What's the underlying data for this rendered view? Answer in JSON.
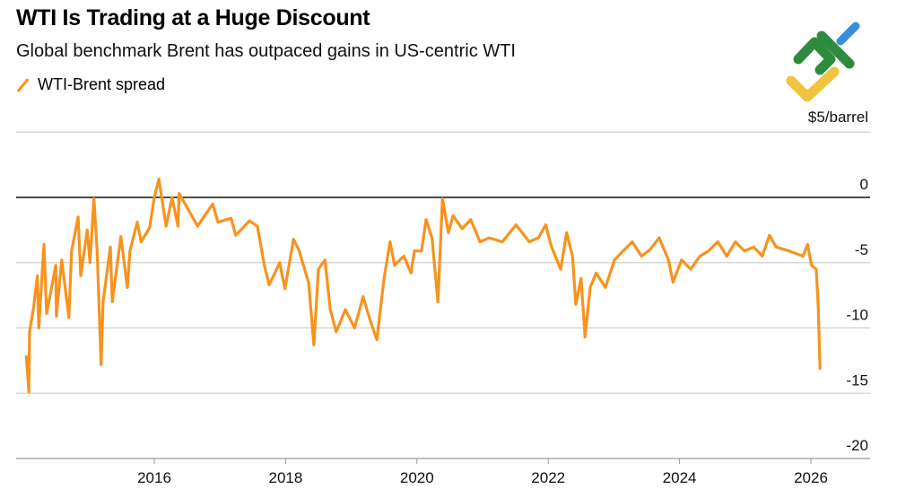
{
  "header": {
    "title": "WTI Is Trading at a Huge Discount",
    "subtitle": "Global benchmark Brent has outpaced gains in US-centric WTI"
  },
  "logo": {
    "name": "brand-logo",
    "colors": [
      "#2e8b3e",
      "#f0c43c",
      "#3a8fdc"
    ]
  },
  "chart_data": {
    "type": "line",
    "title": "WTI Is Trading at a Huge Discount",
    "subtitle": "Global benchmark Brent has outpaced gains in US-centric WTI",
    "unit_label": "$5/barrel",
    "legend_position": "top-left",
    "grid": true,
    "xlim": [
      2014.0,
      2026.9
    ],
    "ylim": [
      -20,
      5
    ],
    "x_ticks": [
      2016,
      2018,
      2020,
      2022,
      2024,
      2026
    ],
    "x_tick_labels": [
      "2016",
      "2018",
      "2020",
      "2022",
      "2024",
      "2026"
    ],
    "y_ticks": [
      0,
      -5,
      -10,
      -15,
      -20
    ],
    "y_tick_labels": [
      "0",
      "-5",
      "-10",
      "-15",
      "-20"
    ],
    "series": [
      {
        "name": "WTI-Brent spread",
        "color": "#f7931e",
        "x": [
          2014.05,
          2014.09,
          2014.1,
          2014.16,
          2014.22,
          2014.24,
          2014.32,
          2014.36,
          2014.5,
          2014.51,
          2014.59,
          2014.7,
          2014.74,
          2014.84,
          2014.88,
          2014.98,
          2015.02,
          2015.08,
          2015.13,
          2015.19,
          2015.22,
          2015.33,
          2015.36,
          2015.49,
          2015.59,
          2015.63,
          2015.74,
          2015.8,
          2015.93,
          2016.0,
          2016.07,
          2016.18,
          2016.27,
          2016.36,
          2016.38,
          2016.66,
          2016.89,
          2016.97,
          2017.17,
          2017.24,
          2017.45,
          2017.57,
          2017.68,
          2017.75,
          2017.91,
          2017.99,
          2018.12,
          2018.2,
          2018.35,
          2018.43,
          2018.5,
          2018.6,
          2018.68,
          2018.77,
          2018.91,
          2019.05,
          2019.18,
          2019.28,
          2019.39,
          2019.5,
          2019.59,
          2019.66,
          2019.8,
          2019.91,
          2019.96,
          2020.07,
          2020.14,
          2020.23,
          2020.32,
          2020.39,
          2020.48,
          2020.55,
          2020.69,
          2020.82,
          2020.96,
          2021.1,
          2021.3,
          2021.51,
          2021.71,
          2021.85,
          2021.96,
          2022.05,
          2022.19,
          2022.28,
          2022.37,
          2022.42,
          2022.5,
          2022.56,
          2022.64,
          2022.73,
          2022.87,
          2023.01,
          2023.14,
          2023.28,
          2023.42,
          2023.55,
          2023.69,
          2023.83,
          2023.9,
          2024.03,
          2024.17,
          2024.31,
          2024.44,
          2024.58,
          2024.72,
          2024.85,
          2024.99,
          2025.13,
          2025.26,
          2025.37,
          2025.47,
          2025.67,
          2025.88,
          2025.95,
          2026.01,
          2026.08,
          2026.11,
          2026.14
        ],
        "y": [
          -12.2,
          -14.9,
          -10.3,
          -8.5,
          -6.0,
          -10.0,
          -3.6,
          -8.9,
          -5.2,
          -9.1,
          -4.8,
          -9.2,
          -4.1,
          -1.5,
          -6.0,
          -2.5,
          -5.0,
          -0.1,
          -4.1,
          -12.8,
          -8.0,
          -3.8,
          -8.0,
          -3.0,
          -6.9,
          -4.1,
          -1.9,
          -3.4,
          -2.3,
          0.0,
          1.4,
          -2.2,
          0.0,
          -2.2,
          0.3,
          -2.2,
          -0.5,
          -1.9,
          -1.6,
          -2.9,
          -1.8,
          -2.2,
          -5.3,
          -6.7,
          -5.0,
          -7.0,
          -3.2,
          -4.0,
          -6.5,
          -11.3,
          -5.5,
          -4.8,
          -8.6,
          -10.3,
          -8.6,
          -10.0,
          -7.6,
          -9.3,
          -10.9,
          -6.2,
          -3.4,
          -5.2,
          -4.5,
          -5.8,
          -4.1,
          -4.1,
          -1.7,
          -3.1,
          -8.0,
          -0.1,
          -2.7,
          -1.4,
          -2.4,
          -1.7,
          -3.4,
          -3.1,
          -3.4,
          -2.1,
          -3.4,
          -3.1,
          -2.1,
          -3.8,
          -5.5,
          -2.7,
          -4.5,
          -8.2,
          -6.2,
          -10.7,
          -6.9,
          -5.8,
          -6.9,
          -4.8,
          -4.1,
          -3.4,
          -4.5,
          -4.0,
          -3.1,
          -4.8,
          -6.5,
          -4.8,
          -5.5,
          -4.5,
          -4.1,
          -3.4,
          -4.5,
          -3.4,
          -4.1,
          -3.8,
          -4.5,
          -2.9,
          -3.8,
          -4.1,
          -4.5,
          -3.6,
          -5.2,
          -5.5,
          -8.2,
          -13.1
        ]
      }
    ]
  }
}
